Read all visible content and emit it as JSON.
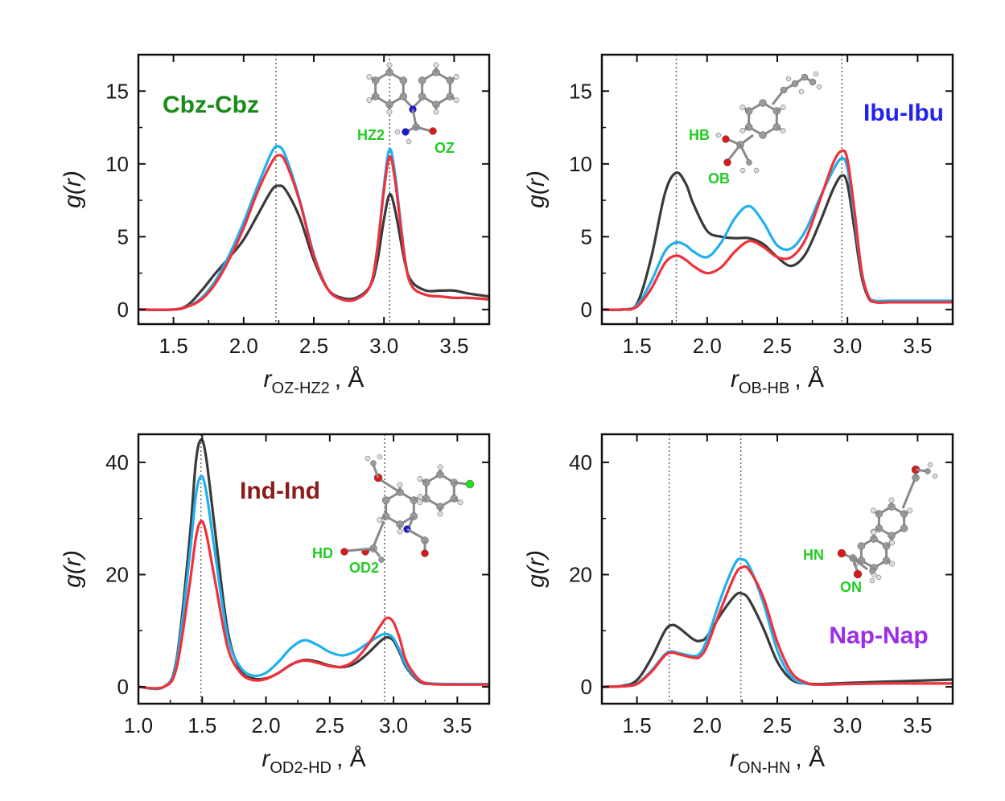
{
  "colors": {
    "black": "#3a3a3a",
    "blue": "#1fb0f0",
    "red": "#f0303a",
    "atom_label": "#22cc22"
  },
  "chart_data": [
    {
      "type": "line",
      "label": "Cbz-Cbz",
      "label_color": "#1a8a1a",
      "label_pos": "top-left",
      "xlabel_main": "r",
      "xlabel_sub": "OZ-HZ2",
      "xlabel_unit": ", Å",
      "ylabel": "g(r)",
      "xlim": [
        1.25,
        3.75
      ],
      "ylim": [
        -1,
        17.5
      ],
      "xticks": [
        1.5,
        2.0,
        2.5,
        3.0,
        3.5
      ],
      "xtick_labels": [
        "1.5",
        "2.0",
        "2.5",
        "3.0",
        "3.5"
      ],
      "yticks": [
        0,
        5,
        10,
        15
      ],
      "ytick_labels": [
        "0",
        "5",
        "10",
        "15"
      ],
      "vlines": [
        2.23,
        3.04
      ],
      "molecule": "cbz",
      "atom_labels": [
        "HZ2",
        "OZ"
      ],
      "series": [
        {
          "color": "black",
          "x": [
            1.25,
            1.5,
            1.6,
            1.7,
            1.8,
            1.9,
            2.0,
            2.1,
            2.2,
            2.25,
            2.3,
            2.4,
            2.5,
            2.6,
            2.7,
            2.8,
            2.9,
            2.95,
            3.0,
            3.04,
            3.08,
            3.15,
            3.2,
            3.3,
            3.4,
            3.5,
            3.6,
            3.75
          ],
          "y": [
            0,
            0,
            0.3,
            1.3,
            2.5,
            3.6,
            4.8,
            6.5,
            8.2,
            8.5,
            8.2,
            6.3,
            3.4,
            1.4,
            0.8,
            0.8,
            1.6,
            3.2,
            6.2,
            7.9,
            6.8,
            3.2,
            1.9,
            1.3,
            1.3,
            1.3,
            1.1,
            0.9
          ]
        },
        {
          "color": "blue",
          "x": [
            1.25,
            1.5,
            1.6,
            1.7,
            1.8,
            1.9,
            2.0,
            2.1,
            2.2,
            2.25,
            2.3,
            2.4,
            2.5,
            2.6,
            2.7,
            2.8,
            2.9,
            2.95,
            3.0,
            3.04,
            3.08,
            3.15,
            3.2,
            3.3,
            3.4,
            3.5,
            3.6,
            3.75
          ],
          "y": [
            0,
            0,
            0.2,
            0.8,
            2.0,
            3.8,
            6.0,
            8.5,
            10.8,
            11.2,
            10.5,
            7.5,
            3.8,
            1.4,
            0.7,
            0.7,
            1.6,
            4.0,
            8.5,
            11.0,
            9.2,
            3.5,
            1.6,
            1.0,
            0.9,
            0.8,
            0.8,
            0.7
          ]
        },
        {
          "color": "red",
          "x": [
            1.25,
            1.5,
            1.6,
            1.7,
            1.8,
            1.9,
            2.0,
            2.1,
            2.2,
            2.25,
            2.3,
            2.4,
            2.5,
            2.6,
            2.7,
            2.8,
            2.9,
            2.95,
            3.0,
            3.04,
            3.08,
            3.15,
            3.2,
            3.3,
            3.4,
            3.5,
            3.6,
            3.75
          ],
          "y": [
            0,
            0,
            0.2,
            0.7,
            1.8,
            3.5,
            5.6,
            8.1,
            10.1,
            10.6,
            10.1,
            7.4,
            3.7,
            1.4,
            0.7,
            0.7,
            1.6,
            4.0,
            8.2,
            10.5,
            8.8,
            3.4,
            1.6,
            1.0,
            0.9,
            0.8,
            0.8,
            0.7
          ]
        }
      ]
    },
    {
      "type": "line",
      "label": "Ibu-Ibu",
      "label_color": "#2222ee",
      "label_pos": "top-right",
      "xlabel_main": "r",
      "xlabel_sub": "OB-HB",
      "xlabel_unit": ", Å",
      "ylabel": "g(r)",
      "xlim": [
        1.25,
        3.75
      ],
      "ylim": [
        -1,
        17.5
      ],
      "xticks": [
        1.5,
        2.0,
        2.5,
        3.0,
        3.5
      ],
      "xtick_labels": [
        "1.5",
        "2.0",
        "2.5",
        "3.0",
        "3.5"
      ],
      "yticks": [
        0,
        5,
        10,
        15
      ],
      "ytick_labels": [
        "0",
        "5",
        "10",
        "15"
      ],
      "vlines": [
        1.78,
        2.96
      ],
      "molecule": "ibu",
      "atom_labels": [
        "HB",
        "OB"
      ],
      "series": [
        {
          "color": "black",
          "x": [
            1.25,
            1.4,
            1.5,
            1.6,
            1.7,
            1.78,
            1.85,
            1.9,
            2.0,
            2.1,
            2.2,
            2.3,
            2.4,
            2.5,
            2.6,
            2.7,
            2.8,
            2.9,
            2.96,
            3.0,
            3.05,
            3.1,
            3.15,
            3.2,
            3.3,
            3.5,
            3.75
          ],
          "y": [
            0,
            0,
            0.4,
            3.5,
            8.0,
            9.4,
            8.6,
            7.3,
            5.4,
            5.0,
            4.9,
            4.9,
            4.5,
            3.6,
            3.0,
            3.8,
            5.9,
            8.3,
            9.2,
            8.6,
            5.5,
            2.3,
            0.8,
            0.5,
            0.5,
            0.5,
            0.5
          ]
        },
        {
          "color": "blue",
          "x": [
            1.25,
            1.4,
            1.5,
            1.6,
            1.7,
            1.78,
            1.85,
            1.9,
            2.0,
            2.1,
            2.2,
            2.3,
            2.4,
            2.5,
            2.6,
            2.7,
            2.8,
            2.9,
            2.96,
            3.0,
            3.05,
            3.1,
            3.15,
            3.2,
            3.3,
            3.5,
            3.75
          ],
          "y": [
            0,
            0,
            0.3,
            1.9,
            4.0,
            4.6,
            4.4,
            4.0,
            3.6,
            4.6,
            6.3,
            7.1,
            6.0,
            4.4,
            4.2,
            5.4,
            7.6,
            9.6,
            10.4,
            9.7,
            6.4,
            2.6,
            0.9,
            0.6,
            0.6,
            0.6,
            0.6
          ]
        },
        {
          "color": "red",
          "x": [
            1.25,
            1.4,
            1.5,
            1.6,
            1.7,
            1.78,
            1.85,
            1.9,
            2.0,
            2.1,
            2.2,
            2.3,
            2.4,
            2.5,
            2.6,
            2.7,
            2.8,
            2.9,
            2.96,
            3.0,
            3.05,
            3.1,
            3.15,
            3.2,
            3.3,
            3.5,
            3.75
          ],
          "y": [
            0,
            0,
            0.2,
            1.4,
            3.2,
            3.7,
            3.4,
            3.0,
            2.5,
            2.9,
            4.0,
            4.7,
            4.3,
            3.6,
            3.6,
            4.8,
            7.4,
            10.1,
            10.9,
            10.3,
            6.8,
            2.7,
            0.9,
            0.5,
            0.5,
            0.5,
            0.5
          ]
        }
      ]
    },
    {
      "type": "line",
      "label": "Ind-Ind",
      "label_color": "#8b1a1a",
      "label_pos": "top-middle",
      "xlabel_main": "r",
      "xlabel_sub": "OD2-HD",
      "xlabel_unit": ", Å",
      "ylabel": "g(r)",
      "xlim": [
        1.0,
        3.75
      ],
      "ylim": [
        -3,
        45
      ],
      "xticks": [
        1.0,
        1.5,
        2.0,
        2.5,
        3.0,
        3.5
      ],
      "xtick_labels": [
        "1.0",
        "1.5",
        "2.0",
        "2.5",
        "3.0",
        "3.5"
      ],
      "yticks": [
        0,
        20,
        40
      ],
      "ytick_labels": [
        "0",
        "20",
        "40"
      ],
      "vlines": [
        1.49,
        2.93
      ],
      "molecule": "ind",
      "atom_labels": [
        "HD",
        "OD2"
      ],
      "series": [
        {
          "color": "black",
          "x": [
            1.0,
            1.2,
            1.3,
            1.4,
            1.45,
            1.49,
            1.53,
            1.6,
            1.7,
            1.8,
            1.9,
            2.0,
            2.1,
            2.2,
            2.3,
            2.4,
            2.5,
            2.6,
            2.7,
            2.8,
            2.9,
            2.95,
            3.0,
            3.05,
            3.1,
            3.2,
            3.3,
            3.5,
            3.75
          ],
          "y": [
            0,
            0,
            5,
            26,
            40,
            44,
            41,
            28,
            10,
            3,
            1.5,
            1.5,
            2.5,
            4,
            4.8,
            4.5,
            3.8,
            3.5,
            4.2,
            6,
            8.2,
            8.8,
            8.2,
            6,
            3.5,
            1,
            0.5,
            0.5,
            0.5
          ]
        },
        {
          "color": "blue",
          "x": [
            1.0,
            1.2,
            1.3,
            1.4,
            1.45,
            1.49,
            1.53,
            1.6,
            1.7,
            1.8,
            1.9,
            2.0,
            2.1,
            2.2,
            2.3,
            2.4,
            2.5,
            2.6,
            2.7,
            2.8,
            2.9,
            2.95,
            3.0,
            3.05,
            3.1,
            3.2,
            3.3,
            3.5,
            3.75
          ],
          "y": [
            0,
            0,
            4.5,
            23,
            34,
            37.5,
            35,
            24,
            9,
            3.5,
            2,
            2.5,
            4.5,
            7,
            8.3,
            7.5,
            6.2,
            5.6,
            6.3,
            7.8,
            9.2,
            9.4,
            8.6,
            6.4,
            3.8,
            1.2,
            0.6,
            0.5,
            0.5
          ]
        },
        {
          "color": "red",
          "x": [
            1.0,
            1.2,
            1.3,
            1.4,
            1.45,
            1.49,
            1.53,
            1.6,
            1.7,
            1.8,
            1.9,
            2.0,
            2.1,
            2.2,
            2.3,
            2.4,
            2.5,
            2.6,
            2.7,
            2.8,
            2.9,
            2.95,
            3.0,
            3.05,
            3.1,
            3.2,
            3.3,
            3.5,
            3.75
          ],
          "y": [
            0,
            0,
            3.5,
            18,
            26.5,
            29.5,
            27.5,
            19,
            7,
            2.5,
            1.2,
            1.4,
            2.5,
            4,
            4.7,
            4.3,
            3.7,
            3.6,
            4.8,
            7.5,
            11,
            12.3,
            11.5,
            8.5,
            4.6,
            1.3,
            0.5,
            0.4,
            0.4
          ]
        }
      ]
    },
    {
      "type": "line",
      "label": "Nap-Nap",
      "label_color": "#9b2ee8",
      "label_pos": "bottom-right",
      "xlabel_main": "r",
      "xlabel_sub": "ON-HN",
      "xlabel_unit": ", Å",
      "ylabel": "g(r)",
      "xlim": [
        1.25,
        3.75
      ],
      "ylim": [
        -3,
        45
      ],
      "xticks": [
        1.5,
        2.0,
        2.5,
        3.0,
        3.5
      ],
      "xtick_labels": [
        "1.5",
        "2.0",
        "2.5",
        "3.0",
        "3.5"
      ],
      "yticks": [
        0,
        20,
        40
      ],
      "ytick_labels": [
        "0",
        "20",
        "40"
      ],
      "vlines": [
        1.73,
        2.24
      ],
      "molecule": "nap",
      "atom_labels": [
        "HN",
        "ON"
      ],
      "series": [
        {
          "color": "black",
          "x": [
            1.25,
            1.4,
            1.5,
            1.6,
            1.7,
            1.75,
            1.8,
            1.9,
            1.95,
            2.0,
            2.1,
            2.2,
            2.25,
            2.3,
            2.4,
            2.5,
            2.6,
            2.7,
            2.8,
            3.0,
            3.25,
            3.5,
            3.75
          ],
          "y": [
            0,
            0.2,
            1.2,
            5,
            10,
            11,
            10.5,
            8.5,
            8.2,
            9,
            13,
            16.3,
            16.6,
            15.5,
            10.5,
            4.5,
            1.3,
            0.6,
            0.5,
            0.7,
            0.9,
            1.1,
            1.3
          ]
        },
        {
          "color": "blue",
          "x": [
            1.25,
            1.4,
            1.5,
            1.6,
            1.7,
            1.75,
            1.8,
            1.9,
            1.95,
            2.0,
            2.1,
            2.2,
            2.25,
            2.3,
            2.4,
            2.5,
            2.6,
            2.7,
            2.8,
            3.0,
            3.25,
            3.5,
            3.75
          ],
          "y": [
            0,
            0.1,
            0.6,
            2.8,
            5.8,
            6.3,
            6,
            5.5,
            6,
            8.5,
            16,
            22,
            22.7,
            21.5,
            15,
            6.5,
            1.8,
            0.6,
            0.4,
            0.5,
            0.6,
            0.6,
            0.6
          ]
        },
        {
          "color": "red",
          "x": [
            1.25,
            1.4,
            1.5,
            1.6,
            1.7,
            1.75,
            1.8,
            1.9,
            1.95,
            2.0,
            2.1,
            2.2,
            2.25,
            2.3,
            2.4,
            2.5,
            2.6,
            2.7,
            2.8,
            3.0,
            3.25,
            3.5,
            3.75
          ],
          "y": [
            0,
            0.1,
            0.5,
            2.6,
            5.6,
            6.1,
            5.8,
            5.2,
            5.4,
            7.3,
            14,
            20,
            21.3,
            20.8,
            16,
            8,
            2.6,
            0.8,
            0.4,
            0.5,
            0.6,
            0.6,
            0.6
          ]
        }
      ]
    }
  ]
}
